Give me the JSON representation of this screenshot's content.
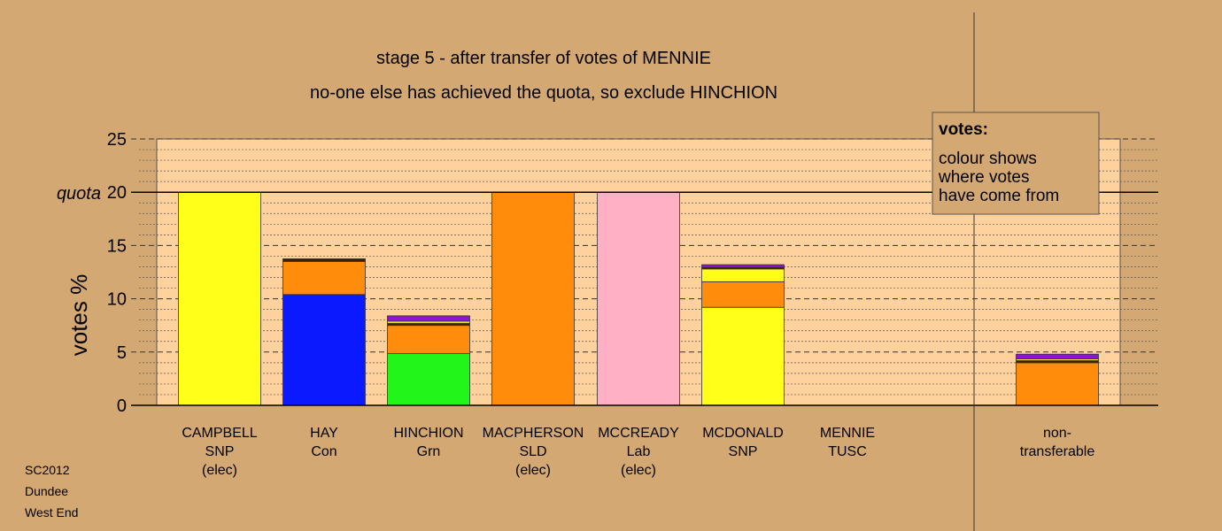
{
  "footer": [
    "SC2012",
    "Dundee",
    "West End"
  ],
  "legend": {
    "title": "votes:",
    "lines": [
      "colour shows",
      "where votes",
      "have come from"
    ]
  },
  "colors": {
    "snp": "#ffff1a",
    "con": "#0a19ff",
    "grn": "#22f51a",
    "sld": "#ff8c0a",
    "lab": "#ffb0c4",
    "tusc": "#9014d8",
    "other": "#3b2008",
    "plot_bg": "#ffd19c"
  },
  "chart_data": {
    "type": "bar",
    "stacked": true,
    "title": "stage 5 - after transfer of votes of MENNIE",
    "subtitle": "no-one else has achieved the quota, so exclude HINCHION",
    "ylabel": "votes %",
    "ylim": [
      0,
      25
    ],
    "yticks": [
      0,
      5,
      10,
      15,
      20,
      25
    ],
    "quota": 20,
    "quota_label": "quota",
    "grid": true,
    "legend_position": "top-right",
    "candidates": [
      {
        "name": "CAMPBELL",
        "party": "SNP",
        "status": "(elec)",
        "segments": [
          {
            "from": "snp",
            "value": 20.0
          }
        ]
      },
      {
        "name": "HAY",
        "party": "Con",
        "status": "",
        "segments": [
          {
            "from": "con",
            "value": 10.4
          },
          {
            "from": "sld",
            "value": 3.1
          },
          {
            "from": "other",
            "value": 0.25
          }
        ]
      },
      {
        "name": "HINCHION",
        "party": "Grn",
        "status": "",
        "segments": [
          {
            "from": "grn",
            "value": 4.85
          },
          {
            "from": "sld",
            "value": 2.65
          },
          {
            "from": "other",
            "value": 0.2
          },
          {
            "from": "snp",
            "value": 0.2
          },
          {
            "from": "tusc",
            "value": 0.5
          }
        ]
      },
      {
        "name": "MACPHERSON",
        "party": "SLD",
        "status": "(elec)",
        "segments": [
          {
            "from": "sld",
            "value": 20.0
          }
        ]
      },
      {
        "name": "MCCREADY",
        "party": "Lab",
        "status": "(elec)",
        "segments": [
          {
            "from": "lab",
            "value": 20.0
          }
        ]
      },
      {
        "name": "MCDONALD",
        "party": "SNP",
        "status": "",
        "segments": [
          {
            "from": "snp",
            "value": 9.2
          },
          {
            "from": "sld",
            "value": 2.4
          },
          {
            "from": "snp",
            "value": 1.2
          },
          {
            "from": "other",
            "value": 0.15
          },
          {
            "from": "tusc",
            "value": 0.25
          }
        ]
      },
      {
        "name": "MENNIE",
        "party": "TUSC",
        "status": "",
        "segments": []
      }
    ],
    "non_transferable": {
      "label_lines": [
        "non-",
        "transferable"
      ],
      "segments": [
        {
          "from": "sld",
          "value": 4.0
        },
        {
          "from": "other",
          "value": 0.2
        },
        {
          "from": "snp",
          "value": 0.15
        },
        {
          "from": "tusc",
          "value": 0.45
        }
      ]
    }
  }
}
